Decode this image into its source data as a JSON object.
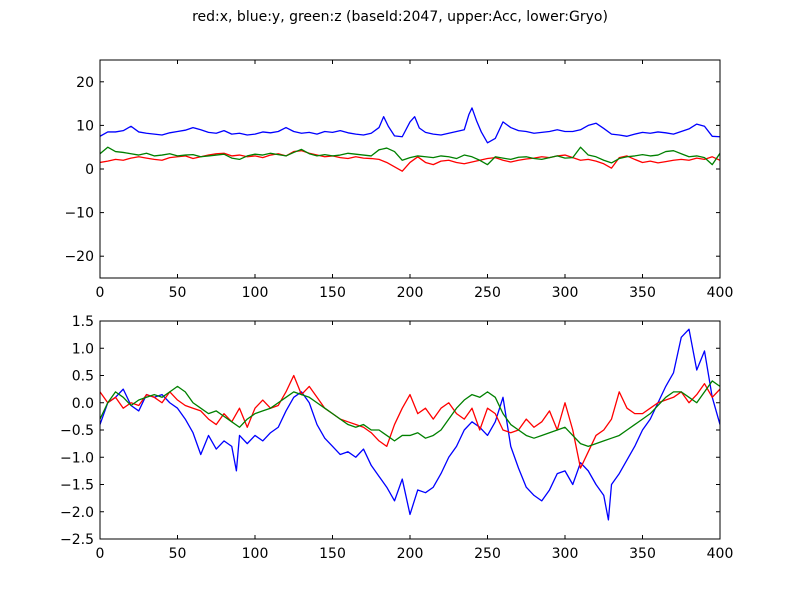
{
  "figure": {
    "title": "red:x, blue:y, green:z (baseId:2047, upper:Acc, lower:Gryo)"
  },
  "chart_data": [
    {
      "type": "line",
      "title": "",
      "xlabel": "",
      "ylabel": "",
      "xlim": [
        0,
        400
      ],
      "ylim": [
        -25,
        25
      ],
      "xticks": [
        0,
        50,
        100,
        150,
        200,
        250,
        300,
        350,
        400
      ],
      "yticks": [
        -20,
        -10,
        0,
        10,
        20
      ],
      "xtick_labels": [
        "0",
        "50",
        "100",
        "150",
        "200",
        "250",
        "300",
        "350",
        "400"
      ],
      "ytick_labels": [
        "−20",
        "−10",
        "0",
        "10",
        "20"
      ],
      "grid": false,
      "series": [
        {
          "color": "#0000ff",
          "x": [
            0,
            5,
            10,
            15,
            20,
            25,
            30,
            35,
            40,
            45,
            50,
            55,
            60,
            65,
            70,
            75,
            80,
            85,
            90,
            95,
            100,
            105,
            110,
            115,
            120,
            125,
            130,
            135,
            140,
            145,
            150,
            155,
            160,
            165,
            170,
            175,
            180,
            183,
            186,
            190,
            195,
            200,
            203,
            206,
            210,
            215,
            220,
            225,
            230,
            235,
            238,
            240,
            243,
            246,
            250,
            255,
            260,
            265,
            270,
            275,
            280,
            285,
            290,
            295,
            300,
            305,
            310,
            315,
            320,
            325,
            330,
            335,
            340,
            345,
            350,
            355,
            360,
            365,
            370,
            375,
            380,
            385,
            390,
            395,
            400
          ],
          "y": [
            7.5,
            8.5,
            8.5,
            8.8,
            9.8,
            8.5,
            8.2,
            8.0,
            7.8,
            8.3,
            8.6,
            8.9,
            9.5,
            9.0,
            8.4,
            8.2,
            8.8,
            8.0,
            8.2,
            7.8,
            8.0,
            8.5,
            8.3,
            8.6,
            9.5,
            8.6,
            8.2,
            8.4,
            8.0,
            8.6,
            8.4,
            8.8,
            8.3,
            8.0,
            7.8,
            8.2,
            9.5,
            12.0,
            9.8,
            7.6,
            7.4,
            10.8,
            12.0,
            9.4,
            8.4,
            8.0,
            7.8,
            8.2,
            8.6,
            9.0,
            12.5,
            14.0,
            11.0,
            8.5,
            6.0,
            7.0,
            10.8,
            9.5,
            8.8,
            8.6,
            8.2,
            8.4,
            8.6,
            9.0,
            8.6,
            8.6,
            9.0,
            10.0,
            10.5,
            9.3,
            8.0,
            7.8,
            7.5,
            8.0,
            8.4,
            8.2,
            8.5,
            8.3,
            8.0,
            8.6,
            9.2,
            10.3,
            9.8,
            7.5,
            7.4
          ]
        },
        {
          "color": "#ff0000",
          "x": [
            0,
            5,
            10,
            15,
            20,
            25,
            30,
            35,
            40,
            45,
            50,
            55,
            60,
            65,
            70,
            75,
            80,
            85,
            90,
            95,
            100,
            105,
            110,
            115,
            120,
            125,
            130,
            135,
            140,
            145,
            150,
            155,
            160,
            165,
            170,
            175,
            180,
            185,
            190,
            195,
            200,
            205,
            210,
            215,
            220,
            225,
            230,
            235,
            240,
            245,
            250,
            255,
            260,
            265,
            270,
            275,
            280,
            285,
            290,
            295,
            300,
            305,
            310,
            315,
            320,
            325,
            330,
            335,
            340,
            345,
            350,
            355,
            360,
            365,
            370,
            375,
            380,
            385,
            390,
            395,
            400
          ],
          "y": [
            1.5,
            1.8,
            2.2,
            2.0,
            2.5,
            2.8,
            2.5,
            2.2,
            2.0,
            2.6,
            2.8,
            3.0,
            2.4,
            2.8,
            3.2,
            3.5,
            3.6,
            3.0,
            3.2,
            2.8,
            3.0,
            2.6,
            3.2,
            3.5,
            3.0,
            4.0,
            4.2,
            3.6,
            3.2,
            2.8,
            3.0,
            2.6,
            2.4,
            2.8,
            2.5,
            2.4,
            2.2,
            1.5,
            0.5,
            -0.5,
            1.5,
            2.8,
            1.5,
            1.0,
            1.8,
            2.0,
            1.5,
            1.2,
            1.6,
            2.0,
            2.4,
            2.6,
            2.0,
            1.6,
            2.0,
            2.3,
            2.5,
            2.8,
            2.6,
            3.0,
            3.2,
            2.6,
            2.0,
            2.2,
            1.8,
            1.2,
            0.2,
            2.6,
            3.0,
            2.2,
            1.5,
            1.8,
            1.4,
            1.7,
            2.0,
            2.2,
            2.0,
            2.5,
            2.2,
            2.8,
            2.0
          ]
        },
        {
          "color": "#008000",
          "x": [
            0,
            5,
            10,
            15,
            20,
            25,
            30,
            35,
            40,
            45,
            50,
            55,
            60,
            65,
            70,
            75,
            80,
            85,
            90,
            95,
            100,
            105,
            110,
            115,
            120,
            125,
            130,
            135,
            140,
            145,
            150,
            155,
            160,
            165,
            170,
            175,
            180,
            185,
            190,
            195,
            200,
            205,
            210,
            215,
            220,
            225,
            230,
            235,
            240,
            245,
            250,
            255,
            260,
            265,
            270,
            275,
            280,
            285,
            290,
            295,
            300,
            305,
            310,
            315,
            320,
            325,
            330,
            335,
            340,
            345,
            350,
            355,
            360,
            365,
            370,
            375,
            380,
            385,
            390,
            395,
            400
          ],
          "y": [
            3.5,
            5.0,
            4.0,
            3.8,
            3.5,
            3.2,
            3.6,
            3.0,
            3.2,
            3.5,
            3.0,
            3.2,
            3.3,
            2.8,
            3.0,
            3.2,
            3.4,
            2.5,
            2.2,
            3.0,
            3.4,
            3.2,
            3.6,
            3.3,
            3.0,
            3.8,
            4.5,
            3.5,
            3.0,
            3.3,
            3.0,
            3.2,
            3.6,
            3.4,
            3.2,
            3.0,
            4.4,
            4.8,
            4.0,
            2.0,
            2.6,
            3.0,
            2.8,
            2.6,
            3.0,
            2.8,
            2.4,
            3.2,
            2.8,
            2.0,
            1.0,
            2.8,
            2.5,
            2.2,
            2.7,
            2.8,
            2.4,
            2.2,
            2.6,
            3.0,
            2.5,
            2.6,
            5.0,
            3.2,
            2.8,
            2.0,
            1.4,
            2.4,
            2.8,
            3.0,
            3.3,
            3.0,
            3.2,
            4.0,
            4.2,
            3.5,
            2.8,
            3.0,
            2.6,
            1.0,
            3.6
          ]
        }
      ]
    },
    {
      "type": "line",
      "title": "",
      "xlabel": "",
      "ylabel": "",
      "xlim": [
        0,
        400
      ],
      "ylim": [
        -2.5,
        1.5
      ],
      "xticks": [
        0,
        50,
        100,
        150,
        200,
        250,
        300,
        350,
        400
      ],
      "yticks": [
        -2.5,
        -2.0,
        -1.5,
        -1.0,
        -0.5,
        0.0,
        0.5,
        1.0,
        1.5
      ],
      "xtick_labels": [
        "0",
        "50",
        "100",
        "150",
        "200",
        "250",
        "300",
        "350",
        "400"
      ],
      "ytick_labels": [
        "−2.5",
        "−2.0",
        "−1.5",
        "−1.0",
        "−0.5",
        "0.0",
        "0.5",
        "1.0",
        "1.5"
      ],
      "grid": false,
      "series": [
        {
          "color": "#0000ff",
          "x": [
            0,
            5,
            10,
            15,
            20,
            25,
            30,
            35,
            40,
            45,
            50,
            55,
            60,
            65,
            70,
            75,
            80,
            85,
            88,
            90,
            95,
            100,
            105,
            110,
            115,
            120,
            125,
            130,
            135,
            140,
            145,
            150,
            155,
            160,
            165,
            170,
            175,
            180,
            185,
            190,
            195,
            200,
            205,
            210,
            215,
            220,
            225,
            230,
            235,
            240,
            245,
            250,
            255,
            260,
            265,
            270,
            275,
            280,
            285,
            290,
            295,
            300,
            305,
            310,
            315,
            320,
            325,
            328,
            330,
            335,
            340,
            345,
            350,
            355,
            360,
            365,
            370,
            375,
            380,
            385,
            390,
            395,
            400
          ],
          "y": [
            -0.4,
            0.0,
            0.1,
            0.25,
            -0.05,
            -0.15,
            0.15,
            0.1,
            0.15,
            0.0,
            -0.1,
            -0.3,
            -0.55,
            -0.95,
            -0.6,
            -0.85,
            -0.7,
            -0.8,
            -1.25,
            -0.6,
            -0.75,
            -0.6,
            -0.7,
            -0.55,
            -0.45,
            -0.15,
            0.1,
            0.2,
            0.0,
            -0.4,
            -0.65,
            -0.8,
            -0.95,
            -0.9,
            -1.0,
            -0.85,
            -1.15,
            -1.35,
            -1.55,
            -1.8,
            -1.4,
            -2.05,
            -1.6,
            -1.65,
            -1.55,
            -1.3,
            -1.0,
            -0.8,
            -0.5,
            -0.35,
            -0.45,
            -0.6,
            -0.35,
            0.1,
            -0.8,
            -1.2,
            -1.55,
            -1.7,
            -1.8,
            -1.6,
            -1.3,
            -1.25,
            -1.5,
            -1.1,
            -1.25,
            -1.5,
            -1.7,
            -2.15,
            -1.5,
            -1.3,
            -1.05,
            -0.8,
            -0.5,
            -0.3,
            0.0,
            0.3,
            0.55,
            1.2,
            1.35,
            0.6,
            0.95,
            0.1,
            -0.4
          ]
        },
        {
          "color": "#ff0000",
          "x": [
            0,
            5,
            10,
            15,
            20,
            25,
            30,
            35,
            40,
            45,
            50,
            55,
            60,
            65,
            70,
            75,
            80,
            85,
            90,
            95,
            100,
            105,
            110,
            115,
            120,
            125,
            130,
            135,
            140,
            145,
            150,
            155,
            160,
            165,
            170,
            175,
            180,
            185,
            190,
            195,
            200,
            205,
            210,
            215,
            220,
            225,
            230,
            235,
            240,
            245,
            250,
            255,
            260,
            265,
            270,
            275,
            280,
            285,
            290,
            295,
            300,
            305,
            310,
            315,
            320,
            325,
            330,
            335,
            340,
            345,
            350,
            355,
            360,
            365,
            370,
            375,
            380,
            385,
            390,
            395,
            400
          ],
          "y": [
            0.2,
            0.0,
            0.1,
            -0.1,
            0.0,
            -0.05,
            0.15,
            0.1,
            0.0,
            0.2,
            0.05,
            -0.05,
            -0.1,
            -0.15,
            -0.3,
            -0.4,
            -0.2,
            -0.35,
            -0.1,
            -0.45,
            -0.1,
            0.05,
            -0.1,
            -0.05,
            0.2,
            0.5,
            0.15,
            0.3,
            0.1,
            -0.1,
            -0.2,
            -0.3,
            -0.35,
            -0.4,
            -0.45,
            -0.55,
            -0.7,
            -0.8,
            -0.4,
            -0.1,
            0.15,
            -0.2,
            -0.1,
            -0.3,
            -0.1,
            0.0,
            -0.2,
            -0.3,
            -0.1,
            -0.5,
            -0.1,
            -0.2,
            -0.5,
            -0.55,
            -0.5,
            -0.3,
            -0.45,
            -0.35,
            -0.15,
            -0.5,
            0.0,
            -0.5,
            -1.2,
            -0.9,
            -0.6,
            -0.5,
            -0.3,
            0.2,
            -0.1,
            -0.2,
            -0.2,
            -0.1,
            0.0,
            0.05,
            0.1,
            0.2,
            0.0,
            0.15,
            0.35,
            0.1,
            0.25
          ]
        },
        {
          "color": "#008000",
          "x": [
            0,
            5,
            10,
            15,
            20,
            25,
            30,
            35,
            40,
            45,
            50,
            55,
            60,
            65,
            70,
            75,
            80,
            85,
            90,
            95,
            100,
            105,
            110,
            115,
            120,
            125,
            130,
            135,
            140,
            145,
            150,
            155,
            160,
            165,
            170,
            175,
            180,
            185,
            190,
            195,
            200,
            205,
            210,
            215,
            220,
            225,
            230,
            235,
            240,
            245,
            250,
            255,
            260,
            265,
            270,
            275,
            280,
            285,
            290,
            295,
            300,
            305,
            310,
            315,
            320,
            325,
            330,
            335,
            340,
            345,
            350,
            355,
            360,
            365,
            370,
            375,
            380,
            385,
            390,
            395,
            400
          ],
          "y": [
            -0.3,
            0.0,
            0.2,
            0.1,
            -0.05,
            0.05,
            0.1,
            0.15,
            0.1,
            0.2,
            0.3,
            0.2,
            0.0,
            -0.1,
            -0.2,
            -0.15,
            -0.25,
            -0.35,
            -0.45,
            -0.3,
            -0.2,
            -0.15,
            -0.1,
            0.0,
            0.1,
            0.2,
            0.15,
            0.1,
            0.0,
            -0.1,
            -0.2,
            -0.3,
            -0.4,
            -0.45,
            -0.4,
            -0.5,
            -0.5,
            -0.6,
            -0.7,
            -0.6,
            -0.6,
            -0.55,
            -0.65,
            -0.6,
            -0.5,
            -0.3,
            -0.1,
            0.05,
            0.15,
            0.1,
            0.2,
            0.1,
            -0.2,
            -0.4,
            -0.5,
            -0.6,
            -0.65,
            -0.6,
            -0.55,
            -0.5,
            -0.45,
            -0.6,
            -0.75,
            -0.8,
            -0.75,
            -0.7,
            -0.65,
            -0.6,
            -0.5,
            -0.4,
            -0.3,
            -0.2,
            -0.05,
            0.1,
            0.2,
            0.2,
            0.1,
            0.0,
            0.2,
            0.4,
            0.3
          ]
        }
      ]
    }
  ]
}
